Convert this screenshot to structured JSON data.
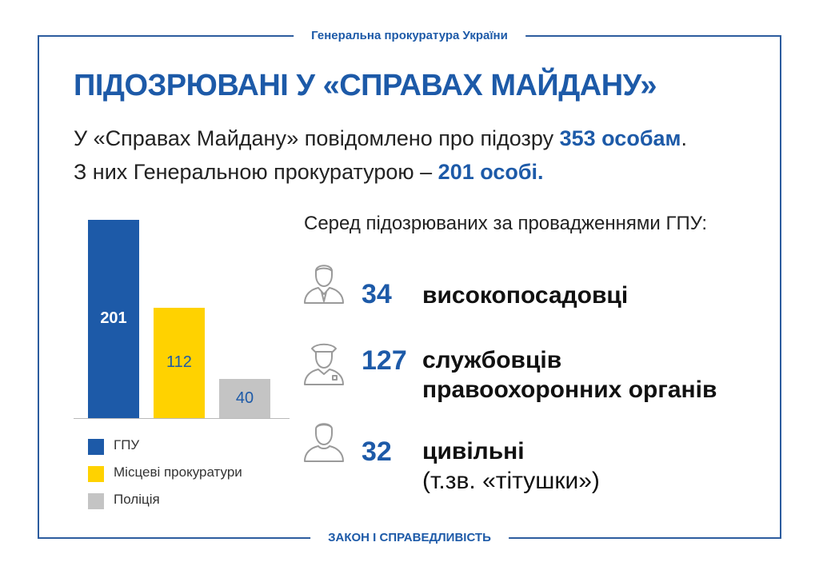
{
  "header": {
    "org": "Генеральна прокуратура України"
  },
  "footer": {
    "slogan": "ЗАКОН І СПРАВЕДЛИВІСТЬ"
  },
  "title": "ПІДОЗРЮВАНІ У «СПРАВАХ МАЙДАНУ»",
  "lead": {
    "line1_text": "У «Справах Майдану» повідомлено про підозру ",
    "line1_highlight": "353 особам",
    "line1_end": ".",
    "line2_text": "З них Генеральною прокуратурою – ",
    "line2_highlight": "201 особі."
  },
  "chart_data": {
    "type": "bar",
    "categories": [
      "ГПУ",
      "Місцеві прокуратури",
      "Поліція"
    ],
    "values": [
      201,
      112,
      40
    ],
    "colors": [
      "#1d5aa8",
      "#ffd200",
      "#c4c4c4"
    ],
    "label_colors": [
      "#ffffff",
      "#1d5aa8",
      "#1d5aa8"
    ],
    "ylim": [
      0,
      201
    ],
    "legend_position": "bottom"
  },
  "breakdown": {
    "heading": "Серед підозрюваних за провадженнями ГПУ:",
    "items": [
      {
        "icon": "businessman-icon",
        "number": "34",
        "label_line1": "високопосадовці",
        "label_line2": ""
      },
      {
        "icon": "police-officer-icon",
        "number": "127",
        "label_line1": "службовців",
        "label_line2": "правоохоронних органів"
      },
      {
        "icon": "civilian-icon",
        "number": "32",
        "label_line1": "цивільні",
        "label_line2": "(т.зв. «тітушки»)"
      }
    ]
  }
}
